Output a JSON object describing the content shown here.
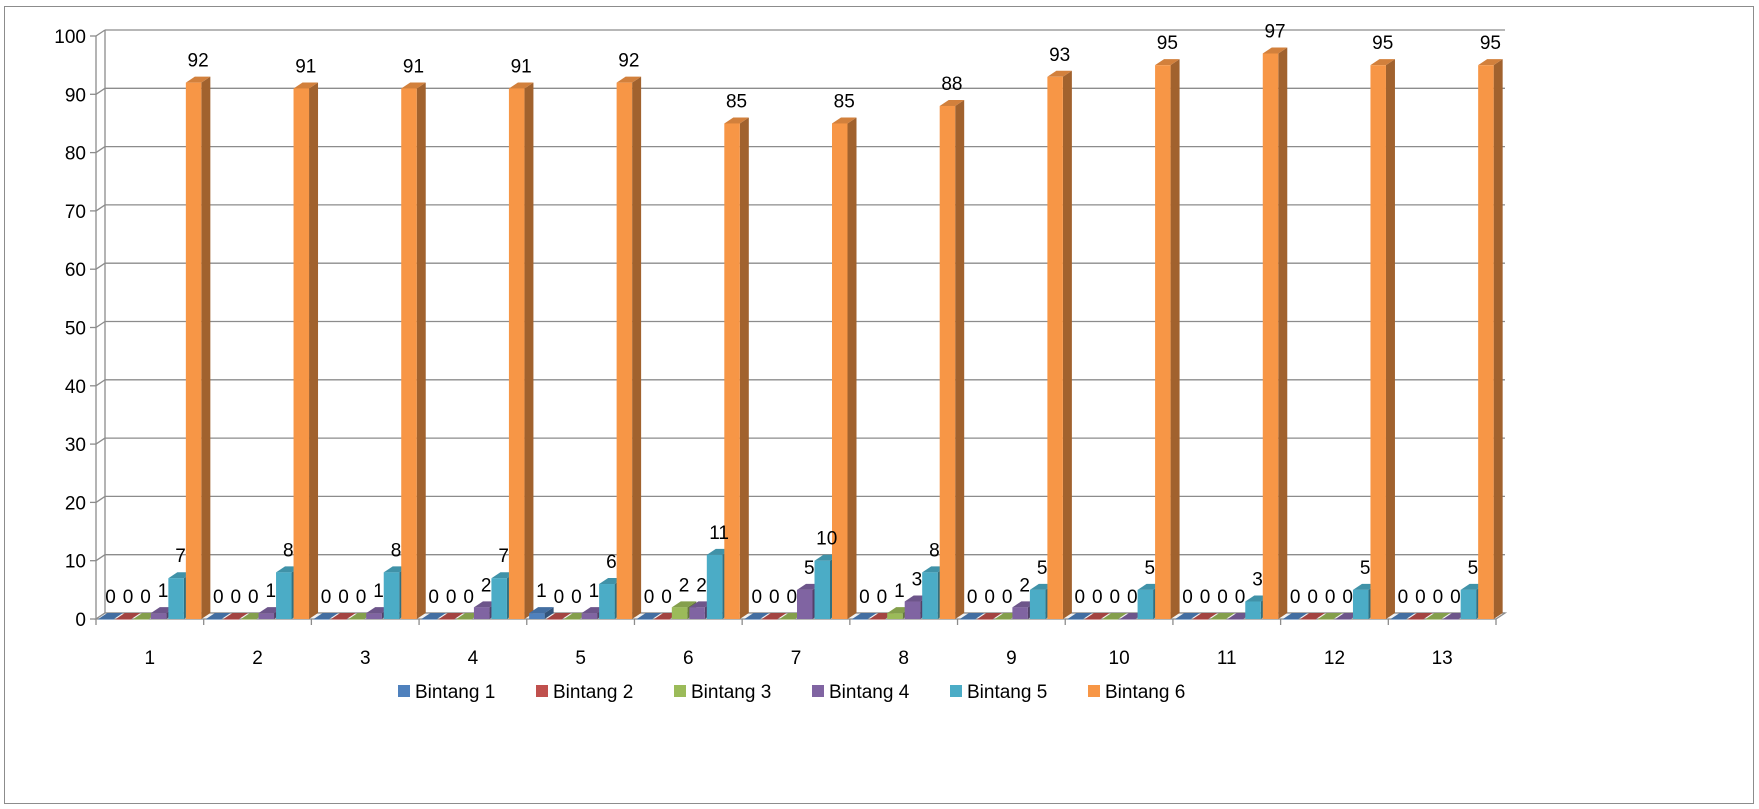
{
  "chart_data": {
    "type": "bar",
    "style": "3d-clustered-column",
    "categories": [
      "1",
      "2",
      "3",
      "4",
      "5",
      "6",
      "7",
      "8",
      "9",
      "10",
      "11",
      "12",
      "13"
    ],
    "series": [
      {
        "name": "Bintang 1",
        "color": "#4F81BD",
        "values": [
          0,
          0,
          0,
          0,
          1,
          0,
          0,
          0,
          0,
          0,
          0,
          0,
          0
        ]
      },
      {
        "name": "Bintang 2",
        "color": "#C0504D",
        "values": [
          0,
          0,
          0,
          0,
          0,
          0,
          0,
          0,
          0,
          0,
          0,
          0,
          0
        ]
      },
      {
        "name": "Bintang 3",
        "color": "#9BBB59",
        "values": [
          0,
          0,
          0,
          0,
          0,
          2,
          0,
          1,
          0,
          0,
          0,
          0,
          0
        ]
      },
      {
        "name": "Bintang 4",
        "color": "#8064A2",
        "values": [
          1,
          1,
          1,
          2,
          1,
          2,
          5,
          3,
          2,
          0,
          0,
          0,
          0
        ]
      },
      {
        "name": "Bintang 5",
        "color": "#4BACC6",
        "values": [
          7,
          8,
          8,
          7,
          6,
          11,
          10,
          8,
          5,
          5,
          3,
          5,
          5
        ]
      },
      {
        "name": "Bintang 6",
        "color": "#F79646",
        "values": [
          92,
          91,
          91,
          91,
          92,
          85,
          85,
          88,
          93,
          95,
          97,
          95,
          95
        ]
      }
    ],
    "data_labels": [
      [
        "0",
        "0",
        "0",
        "1",
        "7",
        "92"
      ],
      [
        "0",
        "0",
        "0",
        "1",
        "8",
        "91"
      ],
      [
        "0",
        "0",
        "0",
        "1",
        "8",
        "91"
      ],
      [
        "0",
        "0",
        "0",
        "2",
        "7",
        "91"
      ],
      [
        "1",
        "0",
        "0",
        "1",
        "6",
        "92"
      ],
      [
        "0",
        "0",
        "2",
        "2",
        "11",
        "85"
      ],
      [
        "0",
        "0",
        "0",
        "5",
        "10",
        "85"
      ],
      [
        "0",
        "0",
        "1",
        "3",
        "8",
        "88"
      ],
      [
        "0",
        "0",
        "0",
        "2",
        "5",
        "93"
      ],
      [
        "0",
        "0",
        "0",
        "0",
        "5",
        "95"
      ],
      [
        "0",
        "0",
        "0",
        "0",
        "3",
        "97"
      ],
      [
        "0",
        "0",
        "0",
        "0",
        "5",
        "95"
      ],
      [
        "0",
        "0",
        "0",
        "0",
        "5",
        "95"
      ]
    ],
    "y_ticks": [
      "0",
      "10",
      "20",
      "30",
      "40",
      "50",
      "60",
      "70",
      "80",
      "90",
      "100"
    ],
    "ylim": [
      0,
      100
    ],
    "grid": true,
    "legend": "bottom",
    "title": "",
    "xlabel": "",
    "ylabel": ""
  }
}
